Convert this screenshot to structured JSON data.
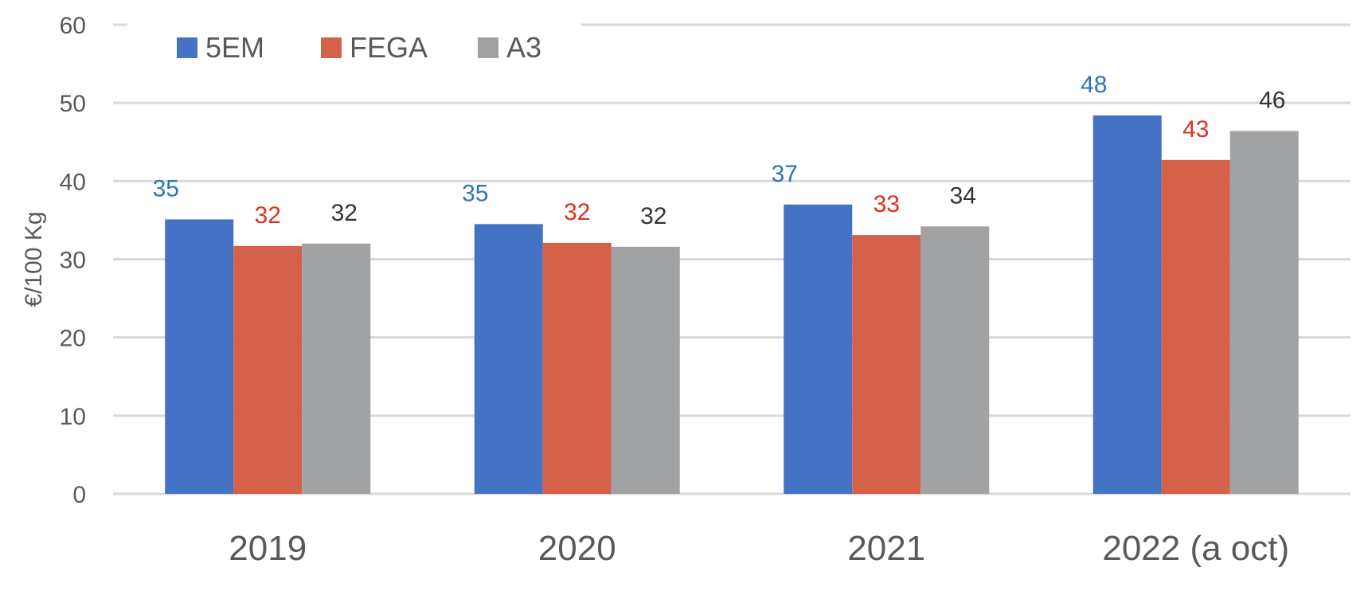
{
  "chart_data": {
    "type": "bar",
    "title": "",
    "xlabel": "",
    "ylabel": "€/100 Kg",
    "ylim": [
      0,
      60
    ],
    "yticks": [
      0,
      10,
      20,
      30,
      40,
      50,
      60
    ],
    "grid": true,
    "legend_position": "top-left",
    "categories": [
      "2019",
      "2020",
      "2021",
      "2022 (a oct)"
    ],
    "series": [
      {
        "name": "5EM",
        "color": "#4472C4",
        "label_color": "#2E75B6",
        "values": [
          35.1,
          34.5,
          37.0,
          48.4
        ],
        "labels": [
          "35",
          "35",
          "37",
          "48"
        ]
      },
      {
        "name": "FEGA",
        "color": "#D4614A",
        "label_color": "#E0301E",
        "values": [
          31.7,
          32.1,
          33.1,
          42.7
        ],
        "labels": [
          "32",
          "32",
          "33",
          "43"
        ]
      },
      {
        "name": "A3",
        "color": "#A0A2A4",
        "label_color": "#333333",
        "values": [
          32.0,
          31.6,
          34.2,
          46.4
        ],
        "labels": [
          "32",
          "32",
          "34",
          "46"
        ]
      }
    ]
  }
}
